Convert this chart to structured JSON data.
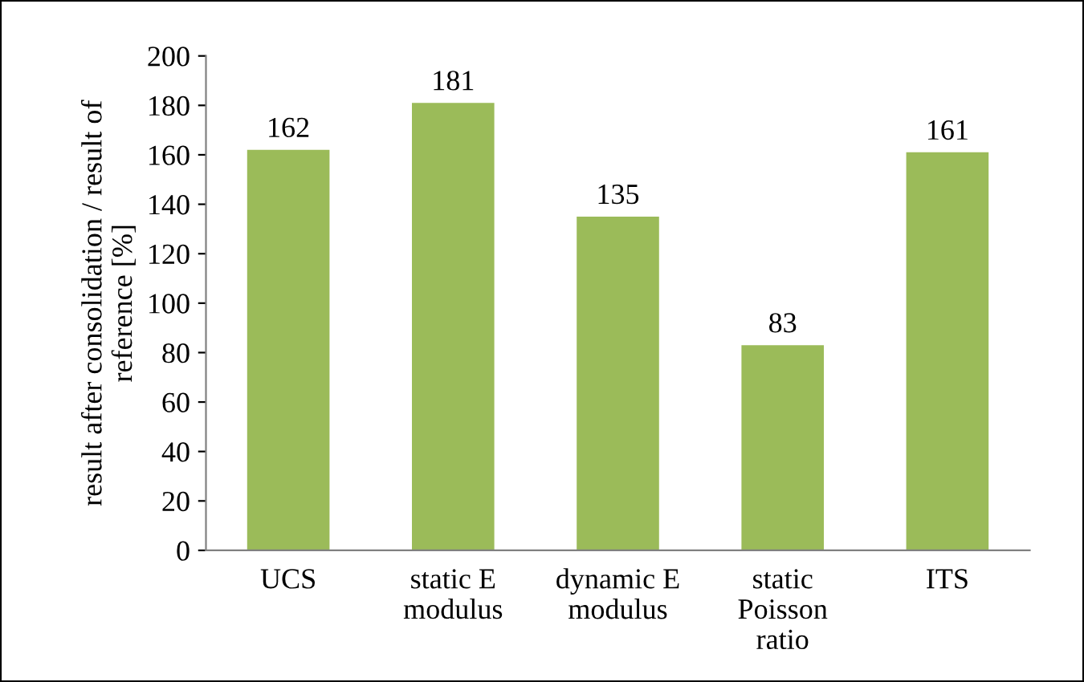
{
  "chart_data": {
    "type": "bar",
    "ylabel": "result after consolidation / result of\nreference [%]",
    "categories": [
      "UCS",
      "static E\nmodulus",
      "dynamic E\nmodulus",
      "static\nPoisson\nratio",
      "ITS"
    ],
    "values": [
      162,
      181,
      135,
      83,
      161
    ],
    "color": "#9bbb59",
    "ylim": [
      0,
      200
    ],
    "yticks": [
      0,
      20,
      40,
      60,
      80,
      100,
      120,
      140,
      160,
      180,
      200
    ],
    "data_labels": true,
    "grid": false,
    "legend": false
  }
}
